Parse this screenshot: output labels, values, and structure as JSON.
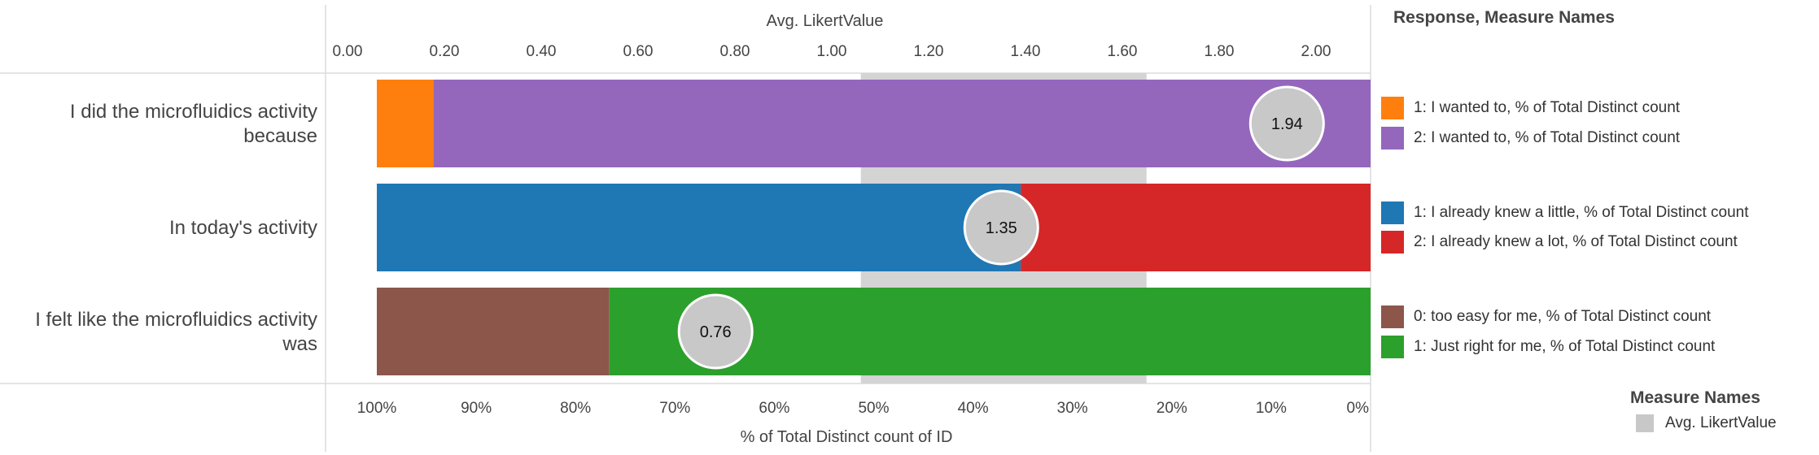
{
  "chart_data": {
    "type": "bar",
    "top_axis": {
      "label": "Avg. LikertValue",
      "ticks": [
        "0.00",
        "0.20",
        "0.40",
        "0.60",
        "0.80",
        "1.00",
        "1.20",
        "1.40",
        "1.60",
        "1.80",
        "2.00"
      ],
      "range": [
        0,
        2.1
      ]
    },
    "bottom_axis": {
      "label": "% of Total Distinct count of ID",
      "ticks": [
        "100%",
        "90%",
        "80%",
        "70%",
        "60%",
        "50%",
        "40%",
        "30%",
        "20%",
        "10%",
        "0%"
      ],
      "range": [
        100,
        0
      ]
    },
    "rows": [
      {
        "label": "I did the microfluidics activity because",
        "label_lines": [
          "I did the microfluidics activity",
          "because"
        ],
        "segments": [
          {
            "series": "1: I wanted to, % of Total Distinct count",
            "color": "#ff7f0e",
            "from": 100,
            "to": 94.3
          },
          {
            "series": "2: I wanted to, % of Total Distinct count",
            "color": "#9467bd",
            "from": 94.3,
            "to": 0
          }
        ],
        "avg": 1.94,
        "avg_label": "1.94"
      },
      {
        "label": "In today's activity",
        "label_lines": [
          "In today's activity"
        ],
        "segments": [
          {
            "series": "1: I already knew a little, % of Total Distinct count",
            "color": "#1f77b4",
            "from": 100,
            "to": 35.2
          },
          {
            "series": "2: I already knew a lot, % of Total Distinct count",
            "color": "#d62728",
            "from": 35.2,
            "to": 0
          }
        ],
        "avg": 1.35,
        "avg_label": "1.35"
      },
      {
        "label": "I felt like the microfluidics activity was",
        "label_lines": [
          "I felt like the microfluidics activity",
          "was"
        ],
        "segments": [
          {
            "series": "0: too easy for me, % of Total Distinct count",
            "color": "#8c564b",
            "from": 100,
            "to": 76.6
          },
          {
            "series": "1: Just right for me, % of Total Distinct count",
            "color": "#2ca02c",
            "from": 76.6,
            "to": 0
          }
        ],
        "avg": 0.76,
        "avg_label": "0.76"
      }
    ],
    "reference_band": {
      "from": 1.06,
      "to": 1.65,
      "color": "#d4d4d4"
    },
    "legend": {
      "title": "Response, Measure Names",
      "placement": "right",
      "items": [
        {
          "label": "1: I wanted to, % of Total Distinct count",
          "color": "#ff7f0e"
        },
        {
          "label": "2: I wanted to, % of Total Distinct count",
          "color": "#9467bd"
        },
        {
          "label": "1: I already knew a little, % of Total Distinct count",
          "color": "#1f77b4"
        },
        {
          "label": "2: I already knew a lot, % of Total Distinct count",
          "color": "#d62728"
        },
        {
          "label": "0: too easy for me, % of Total Distinct count",
          "color": "#8c564b"
        },
        {
          "label": "1: Just right for me, % of Total Distinct count",
          "color": "#2ca02c"
        }
      ]
    },
    "measure_legend": {
      "title": "Measure Names",
      "items": [
        {
          "label": "Avg. LikertValue",
          "color": "#c8c8c8"
        }
      ]
    }
  }
}
